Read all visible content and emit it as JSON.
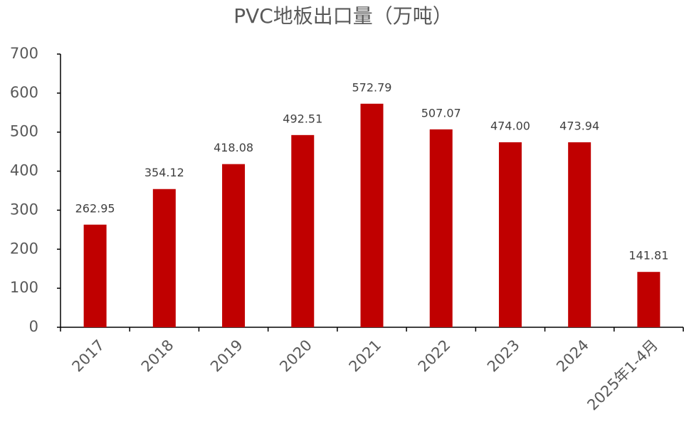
{
  "chart_data": {
    "type": "bar",
    "title": "PVC地板出口量（万吨）",
    "categories": [
      "2017",
      "2018",
      "2019",
      "2020",
      "2021",
      "2022",
      "2023",
      "2024",
      "2025年1-4月"
    ],
    "values": [
      262.95,
      354.12,
      418.08,
      492.51,
      572.79,
      507.07,
      474.0,
      473.94,
      141.81
    ],
    "value_labels": [
      "262.95",
      "354.12",
      "418.08",
      "492.51",
      "572.79",
      "507.07",
      "474.00",
      "473.94",
      "141.81"
    ],
    "color": "#c00000",
    "ylim": [
      0,
      700
    ],
    "yticks": [
      0,
      100,
      200,
      300,
      400,
      500,
      600,
      700
    ]
  }
}
